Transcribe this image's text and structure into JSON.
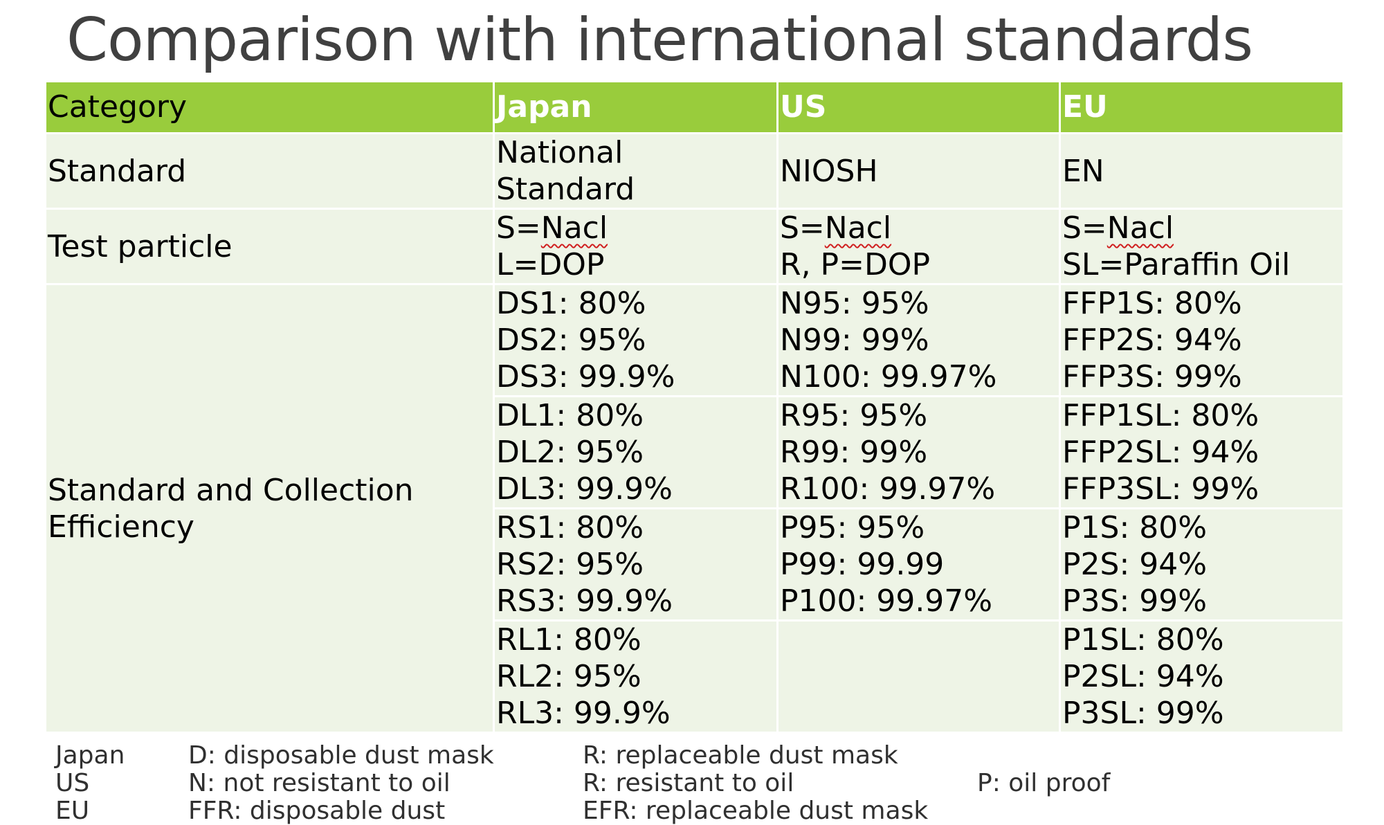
{
  "title": "Comparison with international standards",
  "table": {
    "headers": [
      "Category",
      "Japan",
      "US",
      "EU"
    ],
    "standard_row": {
      "label": "Standard",
      "japan": [
        "National",
        "Standard"
      ],
      "us": "NIOSH",
      "eu": "EN"
    },
    "test_particle_row": {
      "label": "Test particle",
      "japan": [
        "S=",
        "Nacl",
        "L=DOP"
      ],
      "us": [
        "S=",
        "Nacl",
        "R, P=DOP"
      ],
      "eu": [
        "S=",
        "Nacl",
        "SL=Paraffin Oil"
      ]
    },
    "efficiency_label": [
      "Standard and Collection",
      "Efficiency"
    ],
    "efficiency_groups": [
      {
        "japan": [
          "DS1: 80%",
          "DS2: 95%",
          "DS3: 99.9%"
        ],
        "us": [
          "N95: 95%",
          "N99: 99%",
          "N100: 99.97%"
        ],
        "eu": [
          "FFP1S: 80%",
          "FFP2S: 94%",
          "FFP3S: 99%"
        ]
      },
      {
        "japan": [
          "DL1: 80%",
          "DL2: 95%",
          "DL3: 99.9%"
        ],
        "us": [
          "R95: 95%",
          "R99: 99%",
          "R100: 99.97%"
        ],
        "eu": [
          "FFP1SL: 80%",
          "FFP2SL: 94%",
          "FFP3SL: 99%"
        ]
      },
      {
        "japan": [
          "RS1: 80%",
          "RS2: 95%",
          "RS3: 99.9%"
        ],
        "us": [
          "P95: 95%",
          "P99: 99.99",
          "P100: 99.97%"
        ],
        "eu": [
          "P1S: 80%",
          "P2S: 94%",
          "P3S: 99%"
        ]
      },
      {
        "japan": [
          "RL1: 80%",
          "RL2: 95%",
          "RL3: 99.9%"
        ],
        "us": [
          "",
          "",
          ""
        ],
        "eu": [
          "P1SL: 80%",
          "P2SL: 94%",
          "P3SL: 99%"
        ]
      }
    ]
  },
  "legend": [
    {
      "region": "Japan",
      "a": "D: disposable dust mask",
      "b": "R: replaceable dust mask",
      "c": ""
    },
    {
      "region": "US",
      "a": "N: not resistant to oil",
      "b": "R: resistant to oil",
      "c": "P: oil proof"
    },
    {
      "region": "EU",
      "a": "FFR: disposable dust",
      "b": "EFR: replaceable dust mask",
      "c": ""
    }
  ],
  "colors": {
    "header_bg": "#99cc3c",
    "cell_bg": "#eef4e6",
    "title_text": "#404040"
  }
}
